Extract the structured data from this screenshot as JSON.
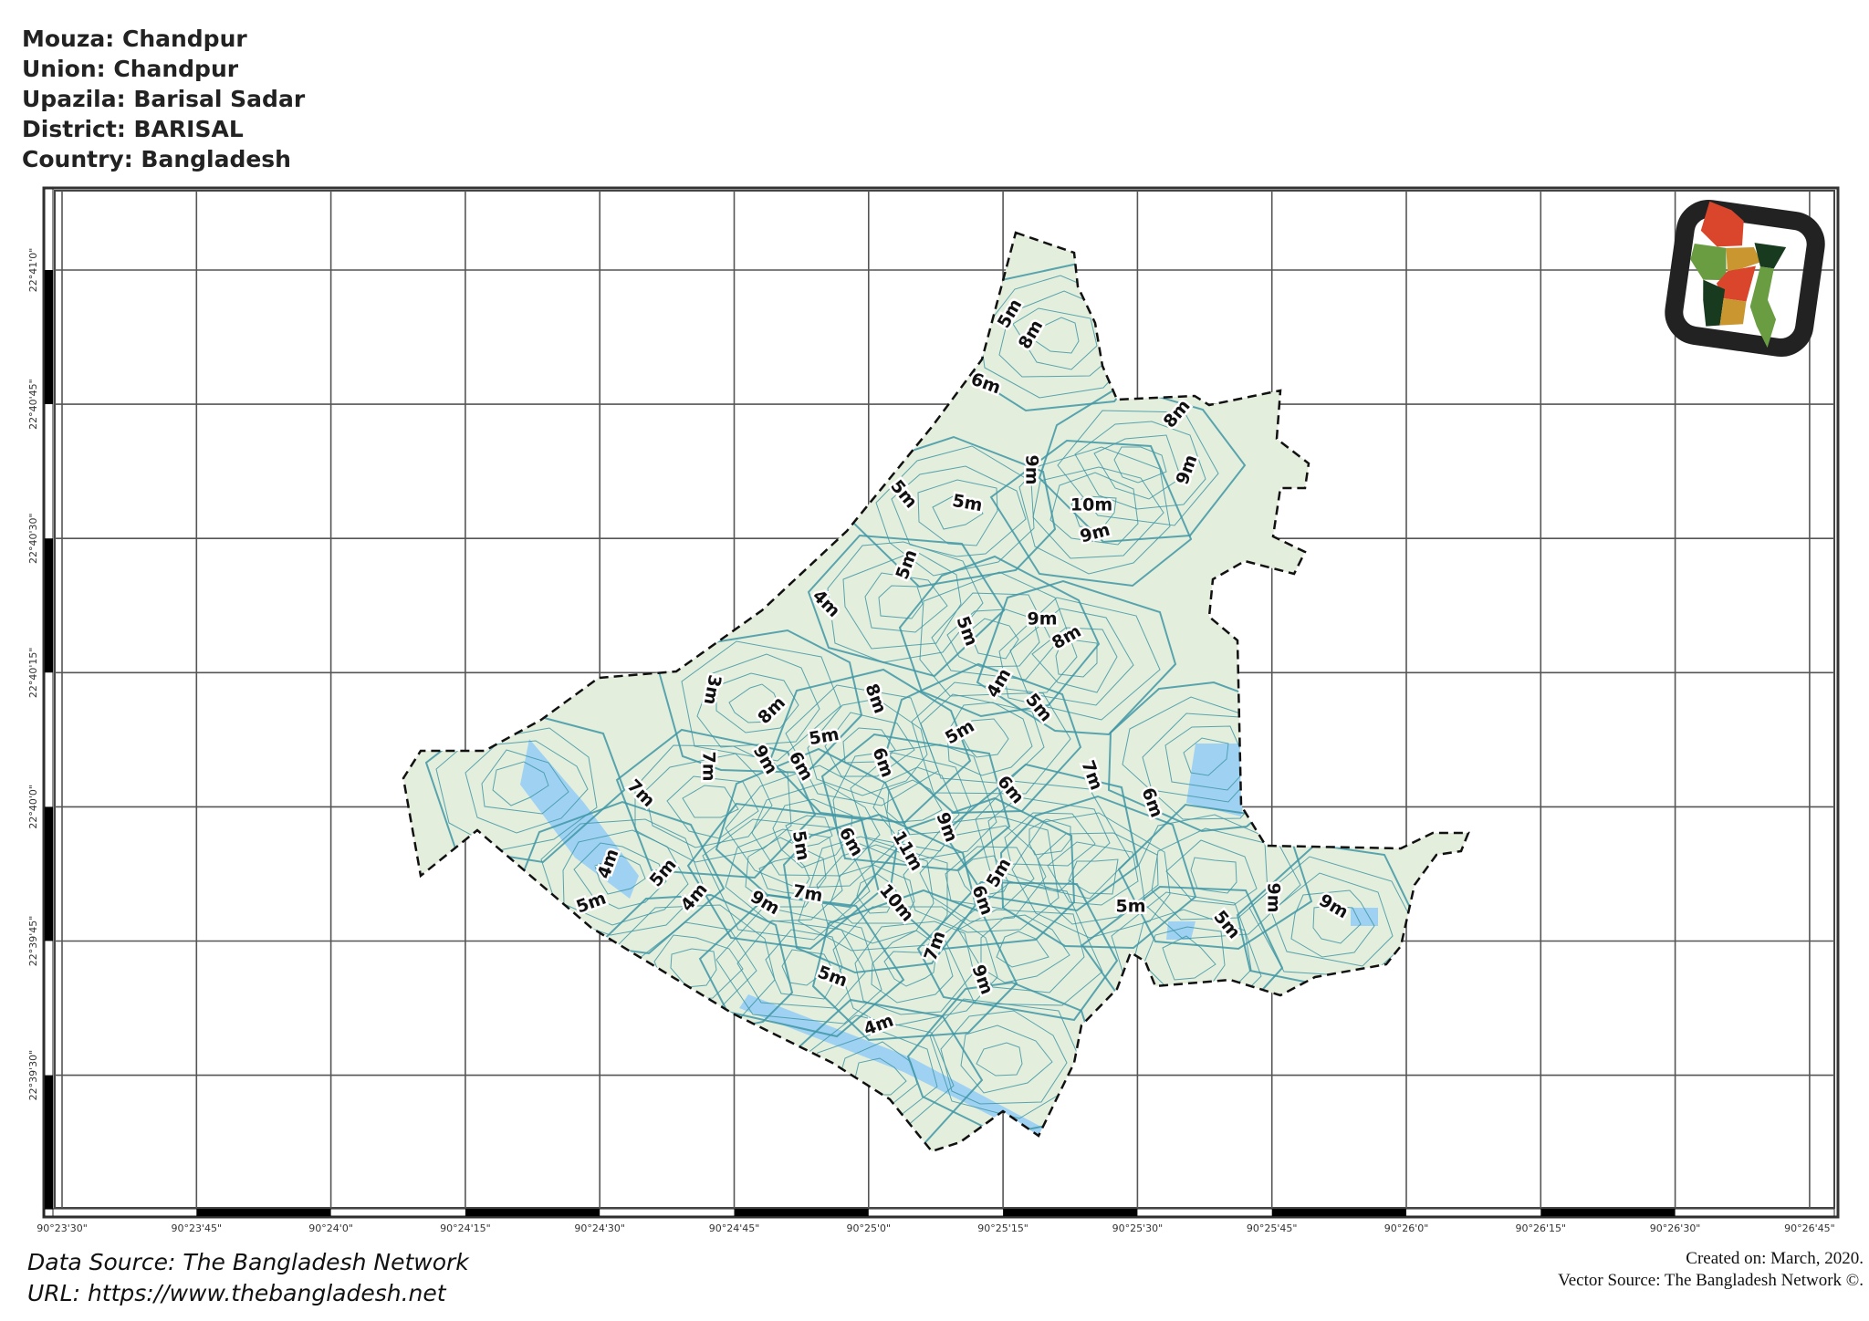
{
  "header": {
    "mouza": "Mouza: Chandpur",
    "union": "Union: Chandpur",
    "upazila": "Upazila: Barisal Sadar",
    "district": "District: BARISAL",
    "country": "Country: Bangladesh"
  },
  "map": {
    "longitude_ticks": [
      "90°23'30\"",
      "90°23'45\"",
      "90°24'0\"",
      "90°24'15\"",
      "90°24'30\"",
      "90°24'45\"",
      "90°25'0\"",
      "90°25'15\"",
      "90°25'30\"",
      "90°25'45\"",
      "90°26'0\"",
      "90°26'15\"",
      "90°26'30\"",
      "90°26'45\""
    ],
    "latitude_ticks": [
      "22°41'0\"",
      "22°40'45\"",
      "22°40'30\"",
      "22°40'15\"",
      "22°40'0\"",
      "22°39'45\"",
      "22°39'30\""
    ],
    "contour_labels": [
      "5m",
      "8m",
      "6m",
      "8m",
      "9m",
      "9m",
      "5m",
      "5m",
      "10m",
      "9m",
      "5m",
      "4m",
      "9m",
      "5m",
      "8m",
      "3m",
      "8m",
      "4m",
      "5m",
      "8m",
      "5m",
      "5m",
      "9m",
      "6m",
      "6m",
      "7m",
      "7m",
      "6m",
      "7m",
      "6m",
      "9m",
      "5m",
      "6m",
      "11m",
      "4m",
      "5m",
      "5m",
      "6m",
      "10m",
      "4m",
      "5m",
      "9m",
      "7m",
      "5m",
      "5m",
      "9m",
      "9m",
      "7m",
      "9m",
      "5m",
      "4m"
    ],
    "colors": {
      "land": "#e4eedc",
      "contour": "#3f97a6",
      "water": "#9fd2f2",
      "boundary": "#111111",
      "grid": "#555555"
    },
    "inset_logo": "bangladesh-map-logo"
  },
  "footer": {
    "data_source": "Data Source: The Bangladesh Network",
    "url": "URL: https://www.thebangladesh.net",
    "created": "Created on: March, 2020.",
    "vector_source": "Vector Source: The Bangladesh Network ©."
  }
}
